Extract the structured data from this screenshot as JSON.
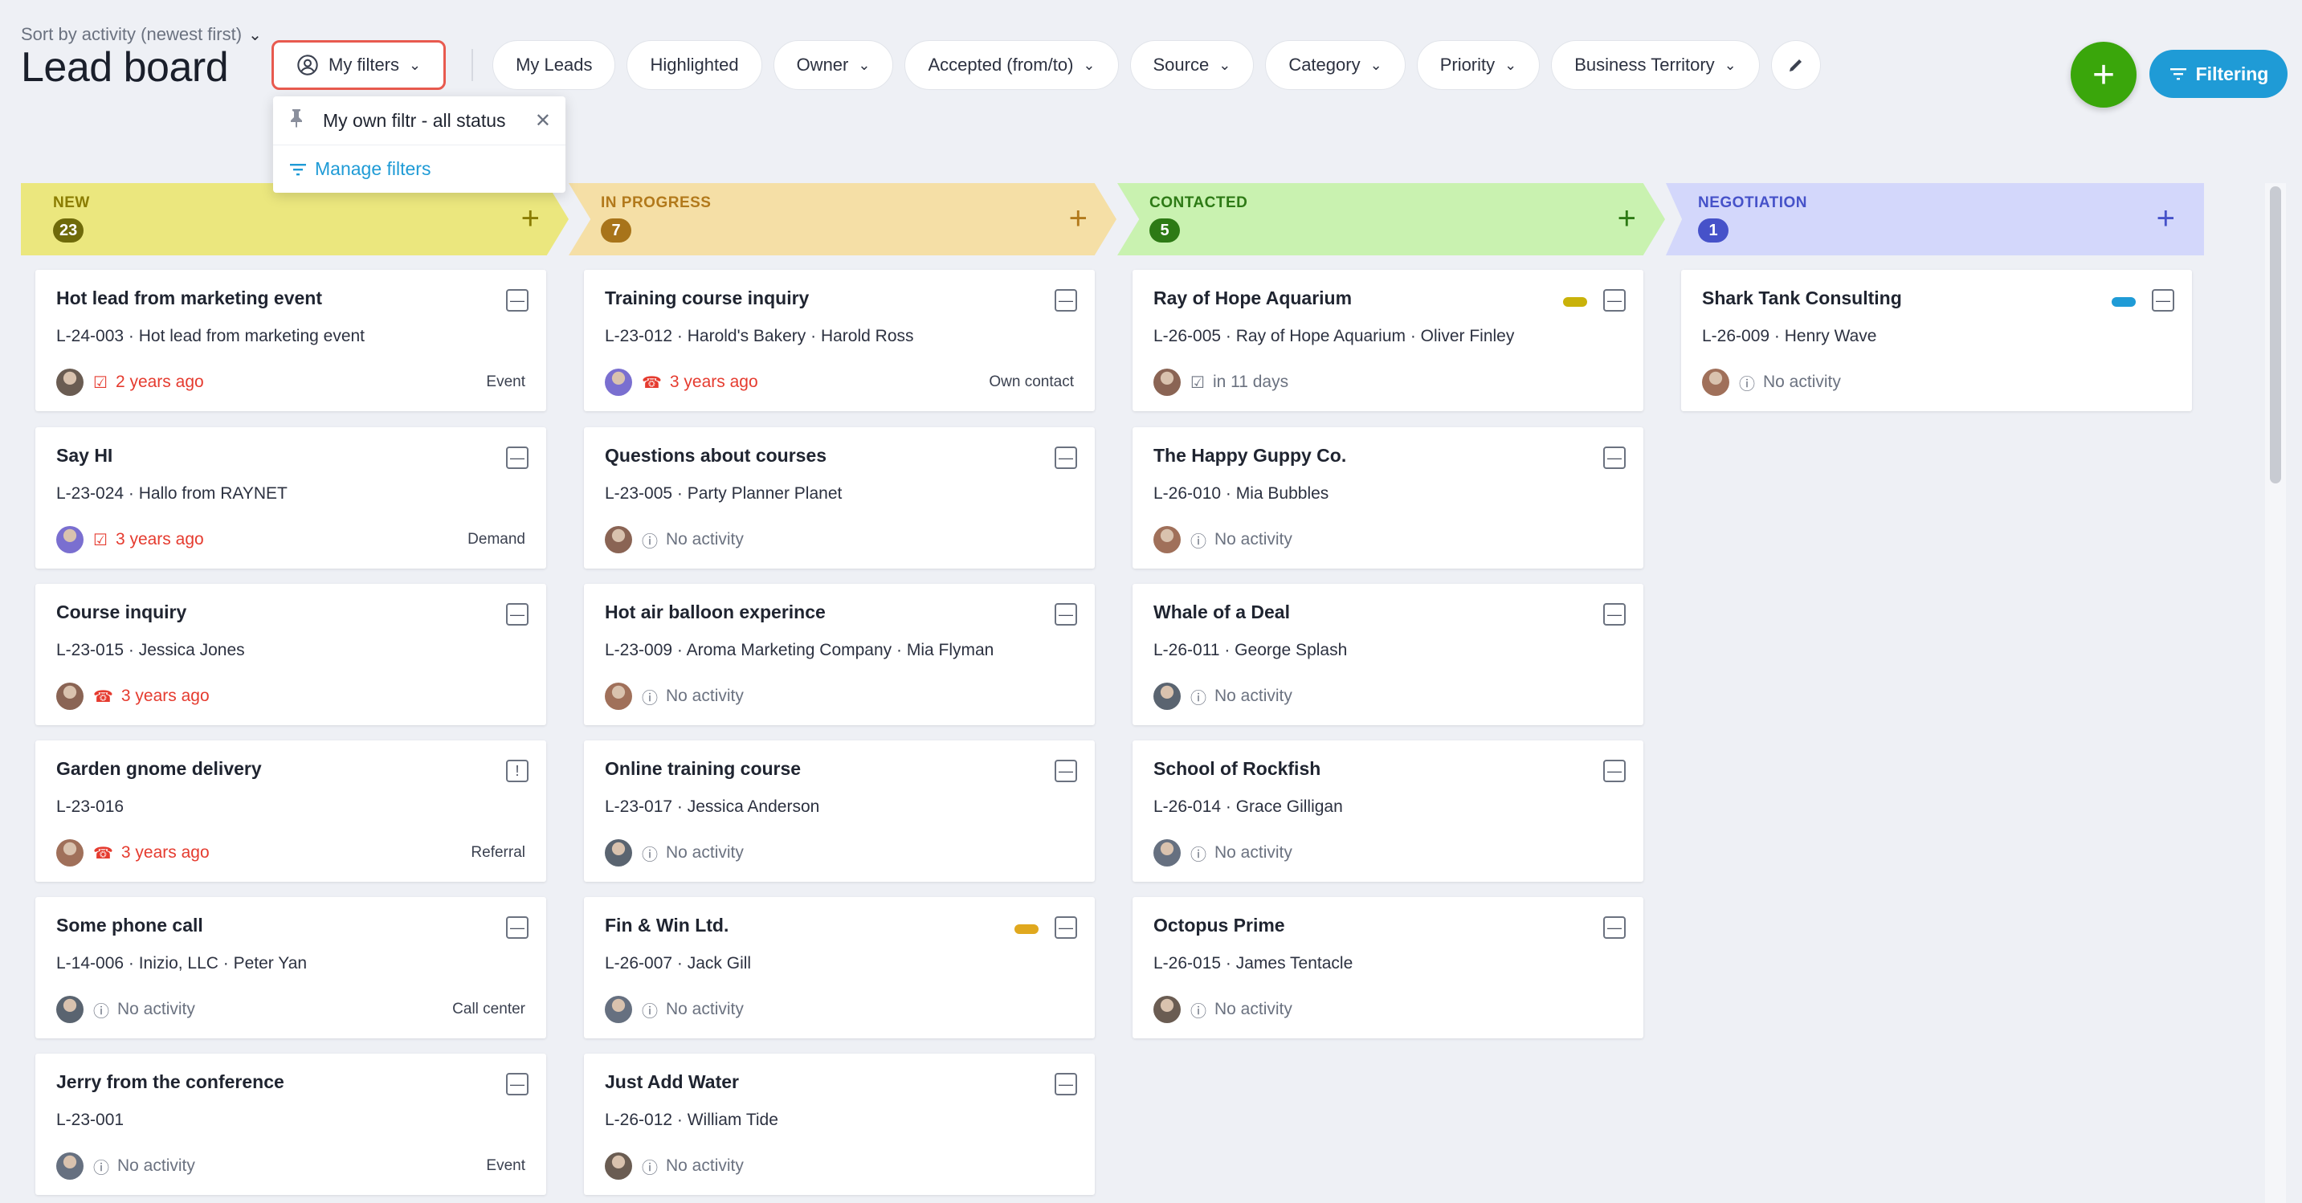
{
  "header": {
    "sort_label": "Sort by activity (newest first)",
    "title": "Lead board"
  },
  "filters": {
    "my_filters": "My filters",
    "chips": [
      "My Leads",
      "Highlighted",
      "Owner",
      "Accepted (from/to)",
      "Source",
      "Category",
      "Priority",
      "Business Territory"
    ]
  },
  "dropdown": {
    "saved_filter": "My own filtr - all status",
    "manage": "Manage filters"
  },
  "actions": {
    "add": "+",
    "filtering": "Filtering"
  },
  "colors": {
    "new": "#ebe77e",
    "in_progress": "#f5dfa6",
    "contacted": "#c9f2b0",
    "negotiation": "#d3d7fb",
    "accent": "#1f9bd6",
    "add": "#3aa60b",
    "red": "#e53b2f"
  },
  "columns": [
    {
      "name": "NEW",
      "count": "23",
      "cards": [
        {
          "title": "Hot lead from marketing event",
          "code": "L-24-003",
          "sub": "Hot lead from marketing event",
          "activity": "2 years ago",
          "activity_icon": "task-icon",
          "tag": "Event"
        },
        {
          "title": "Say HI",
          "code": "L-23-024",
          "sub": "Hallo from RAYNET",
          "activity": "3 years ago",
          "activity_icon": "task-icon",
          "tag": "Demand"
        },
        {
          "title": "Course inquiry",
          "code": "L-23-015",
          "sub": "Jessica Jones",
          "activity": "3 years ago",
          "activity_icon": "phone-icon",
          "tag": ""
        },
        {
          "title": "Garden gnome delivery",
          "code": "L-23-016",
          "sub": "",
          "activity": "3 years ago",
          "activity_icon": "phone-icon",
          "tag": "Referral"
        },
        {
          "title": "Some phone call",
          "code": "L-14-006",
          "sub": "Inizio, LLC · Peter Yan",
          "activity": "No activity",
          "activity_icon": "clock-icon",
          "tag": "Call center"
        },
        {
          "title": "Jerry from the conference",
          "code": "L-23-001",
          "sub": "",
          "activity": "No activity",
          "activity_icon": "clock-icon",
          "tag": "Event"
        }
      ]
    },
    {
      "name": "IN PROGRESS",
      "count": "7",
      "cards": [
        {
          "title": "Training course inquiry",
          "code": "L-23-012",
          "sub": "Harold's Bakery · Harold Ross",
          "activity": "3 years ago",
          "activity_icon": "phone-icon",
          "tag": "Own contact"
        },
        {
          "title": "Questions about courses",
          "code": "L-23-005",
          "sub": "Party Planner Planet",
          "activity": "No activity",
          "activity_icon": "clock-icon",
          "tag": ""
        },
        {
          "title": "Hot air balloon experince",
          "code": "L-23-009",
          "sub": "Aroma Marketing Company · Mia Flyman",
          "activity": "No activity",
          "activity_icon": "clock-icon",
          "tag": ""
        },
        {
          "title": "Online training course",
          "code": "L-23-017",
          "sub": "Jessica Anderson",
          "activity": "No activity",
          "activity_icon": "clock-icon",
          "tag": ""
        },
        {
          "title": "Fin & Win Ltd.",
          "code": "L-26-007",
          "sub": "Jack Gill",
          "activity": "No activity",
          "activity_icon": "clock-icon",
          "tag": ""
        },
        {
          "title": "Just Add Water",
          "code": "L-26-012",
          "sub": "William Tide",
          "activity": "No activity",
          "activity_icon": "clock-icon",
          "tag": ""
        }
      ]
    },
    {
      "name": "CONTACTED",
      "count": "5",
      "cards": [
        {
          "title": "Ray of Hope Aquarium",
          "code": "L-26-005",
          "sub": "Ray of Hope Aquarium · Oliver Finley",
          "activity": "in 11 days",
          "activity_icon": "task-icon",
          "tag": ""
        },
        {
          "title": "The Happy Guppy Co.",
          "code": "L-26-010",
          "sub": "Mia Bubbles",
          "activity": "No activity",
          "activity_icon": "clock-icon",
          "tag": ""
        },
        {
          "title": "Whale of a Deal",
          "code": "L-26-011",
          "sub": "George Splash",
          "activity": "No activity",
          "activity_icon": "clock-icon",
          "tag": ""
        },
        {
          "title": "School of Rockfish",
          "code": "L-26-014",
          "sub": "Grace Gilligan",
          "activity": "No activity",
          "activity_icon": "clock-icon",
          "tag": ""
        },
        {
          "title": "Octopus Prime",
          "code": "L-26-015",
          "sub": "James Tentacle",
          "activity": "No activity",
          "activity_icon": "clock-icon",
          "tag": ""
        }
      ]
    },
    {
      "name": "NEGOTIATION",
      "count": "1",
      "cards": [
        {
          "title": "Shark Tank Consulting",
          "code": "L-26-009",
          "sub": "Henry Wave",
          "activity": "No activity",
          "activity_icon": "clock-icon",
          "tag": ""
        }
      ]
    }
  ]
}
